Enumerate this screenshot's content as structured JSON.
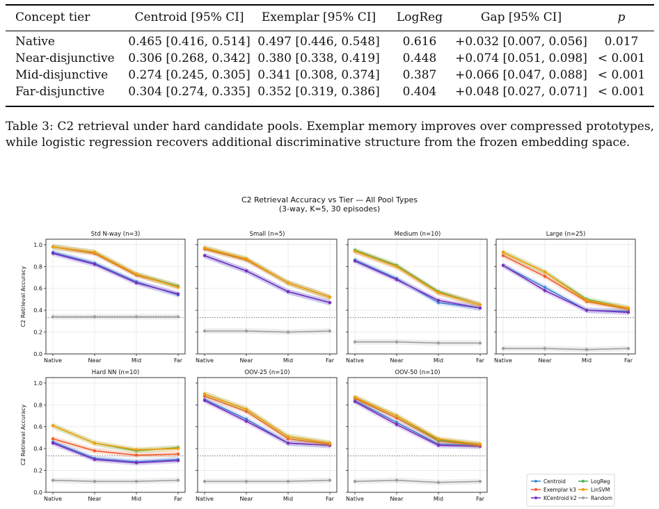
{
  "table": {
    "headers": [
      "Concept tier",
      "Centroid [95% CI]",
      "Exemplar [95% CI]",
      "LogReg",
      "Gap [95% CI]",
      "p"
    ],
    "rows": [
      [
        "Native",
        "0.465 [0.416, 0.514]",
        "0.497 [0.446, 0.548]",
        "0.616",
        "+0.032 [0.007, 0.056]",
        "0.017"
      ],
      [
        "Near-disjunctive",
        "0.306 [0.268, 0.342]",
        "0.380 [0.338, 0.419]",
        "0.448",
        "+0.074 [0.051, 0.098]",
        "< 0.001"
      ],
      [
        "Mid-disjunctive",
        "0.274 [0.245, 0.305]",
        "0.341 [0.308, 0.374]",
        "0.387",
        "+0.066 [0.047, 0.088]",
        "< 0.001"
      ],
      [
        "Far-disjunctive",
        "0.304 [0.274, 0.335]",
        "0.352 [0.319, 0.386]",
        "0.404",
        "+0.048 [0.027, 0.071]",
        "< 0.001"
      ]
    ]
  },
  "caption": "Table 3: C2 retrieval under hard candidate pools. Exemplar memory improves over compressed prototypes, while logistic regression recovers additional discriminative structure from the frozen embedding space.",
  "figure": {
    "title_line1": "C2 Retrieval Accuracy vs Tier — All Pool Types",
    "title_line2": "(3-way, K=5, 30 episodes)"
  },
  "chart_data": {
    "type": "line",
    "categories": [
      "Native",
      "Near",
      "Mid",
      "Far"
    ],
    "ylabel": "C2 Retrieval Accuracy",
    "ylim": [
      0,
      1.05
    ],
    "yticks": [
      "0.0",
      "0.2",
      "0.4",
      "0.6",
      "0.8",
      "1.0"
    ],
    "chance_line": 0.333,
    "grid": true,
    "legend_position": "bottom-right",
    "series_styles": [
      {
        "name": "Centroid",
        "color": "#3b8fd6"
      },
      {
        "name": "Exemplar k3",
        "color": "#f15a2b"
      },
      {
        "name": "KCentroid k2",
        "color": "#7b2cbf"
      },
      {
        "name": "LogReg",
        "color": "#4caf50"
      },
      {
        "name": "LinSVM",
        "color": "#f59e0b"
      },
      {
        "name": "Random",
        "color": "#9e9e9e"
      }
    ],
    "panels": [
      {
        "title": "Std N-way (n=3)",
        "series": {
          "Centroid": [
            0.93,
            0.83,
            0.66,
            0.54
          ],
          "Exemplar k3": [
            0.98,
            0.92,
            0.72,
            0.62
          ],
          "KCentroid k2": [
            0.92,
            0.82,
            0.65,
            0.55
          ],
          "LogReg": [
            0.98,
            0.93,
            0.73,
            0.62
          ],
          "LinSVM": [
            0.98,
            0.93,
            0.73,
            0.61
          ],
          "Random": [
            0.34,
            0.34,
            0.34,
            0.34
          ]
        }
      },
      {
        "title": "Small (n=5)",
        "series": {
          "Centroid": [
            0.9,
            0.76,
            0.57,
            0.47
          ],
          "Exemplar k3": [
            0.96,
            0.86,
            0.65,
            0.52
          ],
          "KCentroid k2": [
            0.9,
            0.76,
            0.57,
            0.47
          ],
          "LogReg": [
            0.97,
            0.87,
            0.65,
            0.52
          ],
          "LinSVM": [
            0.97,
            0.87,
            0.65,
            0.52
          ],
          "Random": [
            0.21,
            0.21,
            0.2,
            0.21
          ]
        }
      },
      {
        "title": "Medium (n=10)",
        "series": {
          "Centroid": [
            0.86,
            0.69,
            0.47,
            0.42
          ],
          "Exemplar k3": [
            0.94,
            0.8,
            0.56,
            0.45
          ],
          "KCentroid k2": [
            0.85,
            0.68,
            0.49,
            0.42
          ],
          "LogReg": [
            0.95,
            0.81,
            0.57,
            0.45
          ],
          "LinSVM": [
            0.94,
            0.8,
            0.56,
            0.45
          ],
          "Random": [
            0.11,
            0.11,
            0.1,
            0.1
          ]
        }
      },
      {
        "title": "Large (n=25)",
        "series": {
          "Centroid": [
            0.81,
            0.61,
            0.4,
            0.39
          ],
          "Exemplar k3": [
            0.9,
            0.71,
            0.48,
            0.41
          ],
          "KCentroid k2": [
            0.81,
            0.58,
            0.4,
            0.38
          ],
          "LogReg": [
            0.93,
            0.75,
            0.5,
            0.42
          ],
          "LinSVM": [
            0.93,
            0.75,
            0.49,
            0.42
          ],
          "Random": [
            0.05,
            0.05,
            0.04,
            0.05
          ]
        }
      },
      {
        "title": "Hard NN (n=10)",
        "series": {
          "Centroid": [
            0.46,
            0.31,
            0.28,
            0.3
          ],
          "Exemplar k3": [
            0.49,
            0.38,
            0.34,
            0.35
          ],
          "KCentroid k2": [
            0.45,
            0.3,
            0.27,
            0.29
          ],
          "LogReg": [
            0.61,
            0.45,
            0.38,
            0.41
          ],
          "LinSVM": [
            0.61,
            0.45,
            0.39,
            0.4
          ],
          "Random": [
            0.11,
            0.1,
            0.1,
            0.11
          ]
        }
      },
      {
        "title": "OOV-25 (n=10)",
        "series": {
          "Centroid": [
            0.85,
            0.67,
            0.45,
            0.43
          ],
          "Exemplar k3": [
            0.88,
            0.74,
            0.49,
            0.44
          ],
          "KCentroid k2": [
            0.84,
            0.65,
            0.45,
            0.43
          ],
          "LogReg": [
            0.9,
            0.76,
            0.51,
            0.45
          ],
          "LinSVM": [
            0.9,
            0.76,
            0.51,
            0.45
          ],
          "Random": [
            0.1,
            0.1,
            0.1,
            0.11
          ]
        }
      },
      {
        "title": "OOV-50 (n=10)",
        "series": {
          "Centroid": [
            0.84,
            0.64,
            0.44,
            0.43
          ],
          "Exemplar k3": [
            0.86,
            0.68,
            0.47,
            0.43
          ],
          "KCentroid k2": [
            0.83,
            0.62,
            0.43,
            0.42
          ],
          "LogReg": [
            0.87,
            0.7,
            0.48,
            0.44
          ],
          "LinSVM": [
            0.87,
            0.7,
            0.49,
            0.44
          ],
          "Random": [
            0.1,
            0.11,
            0.09,
            0.1
          ]
        }
      }
    ]
  }
}
